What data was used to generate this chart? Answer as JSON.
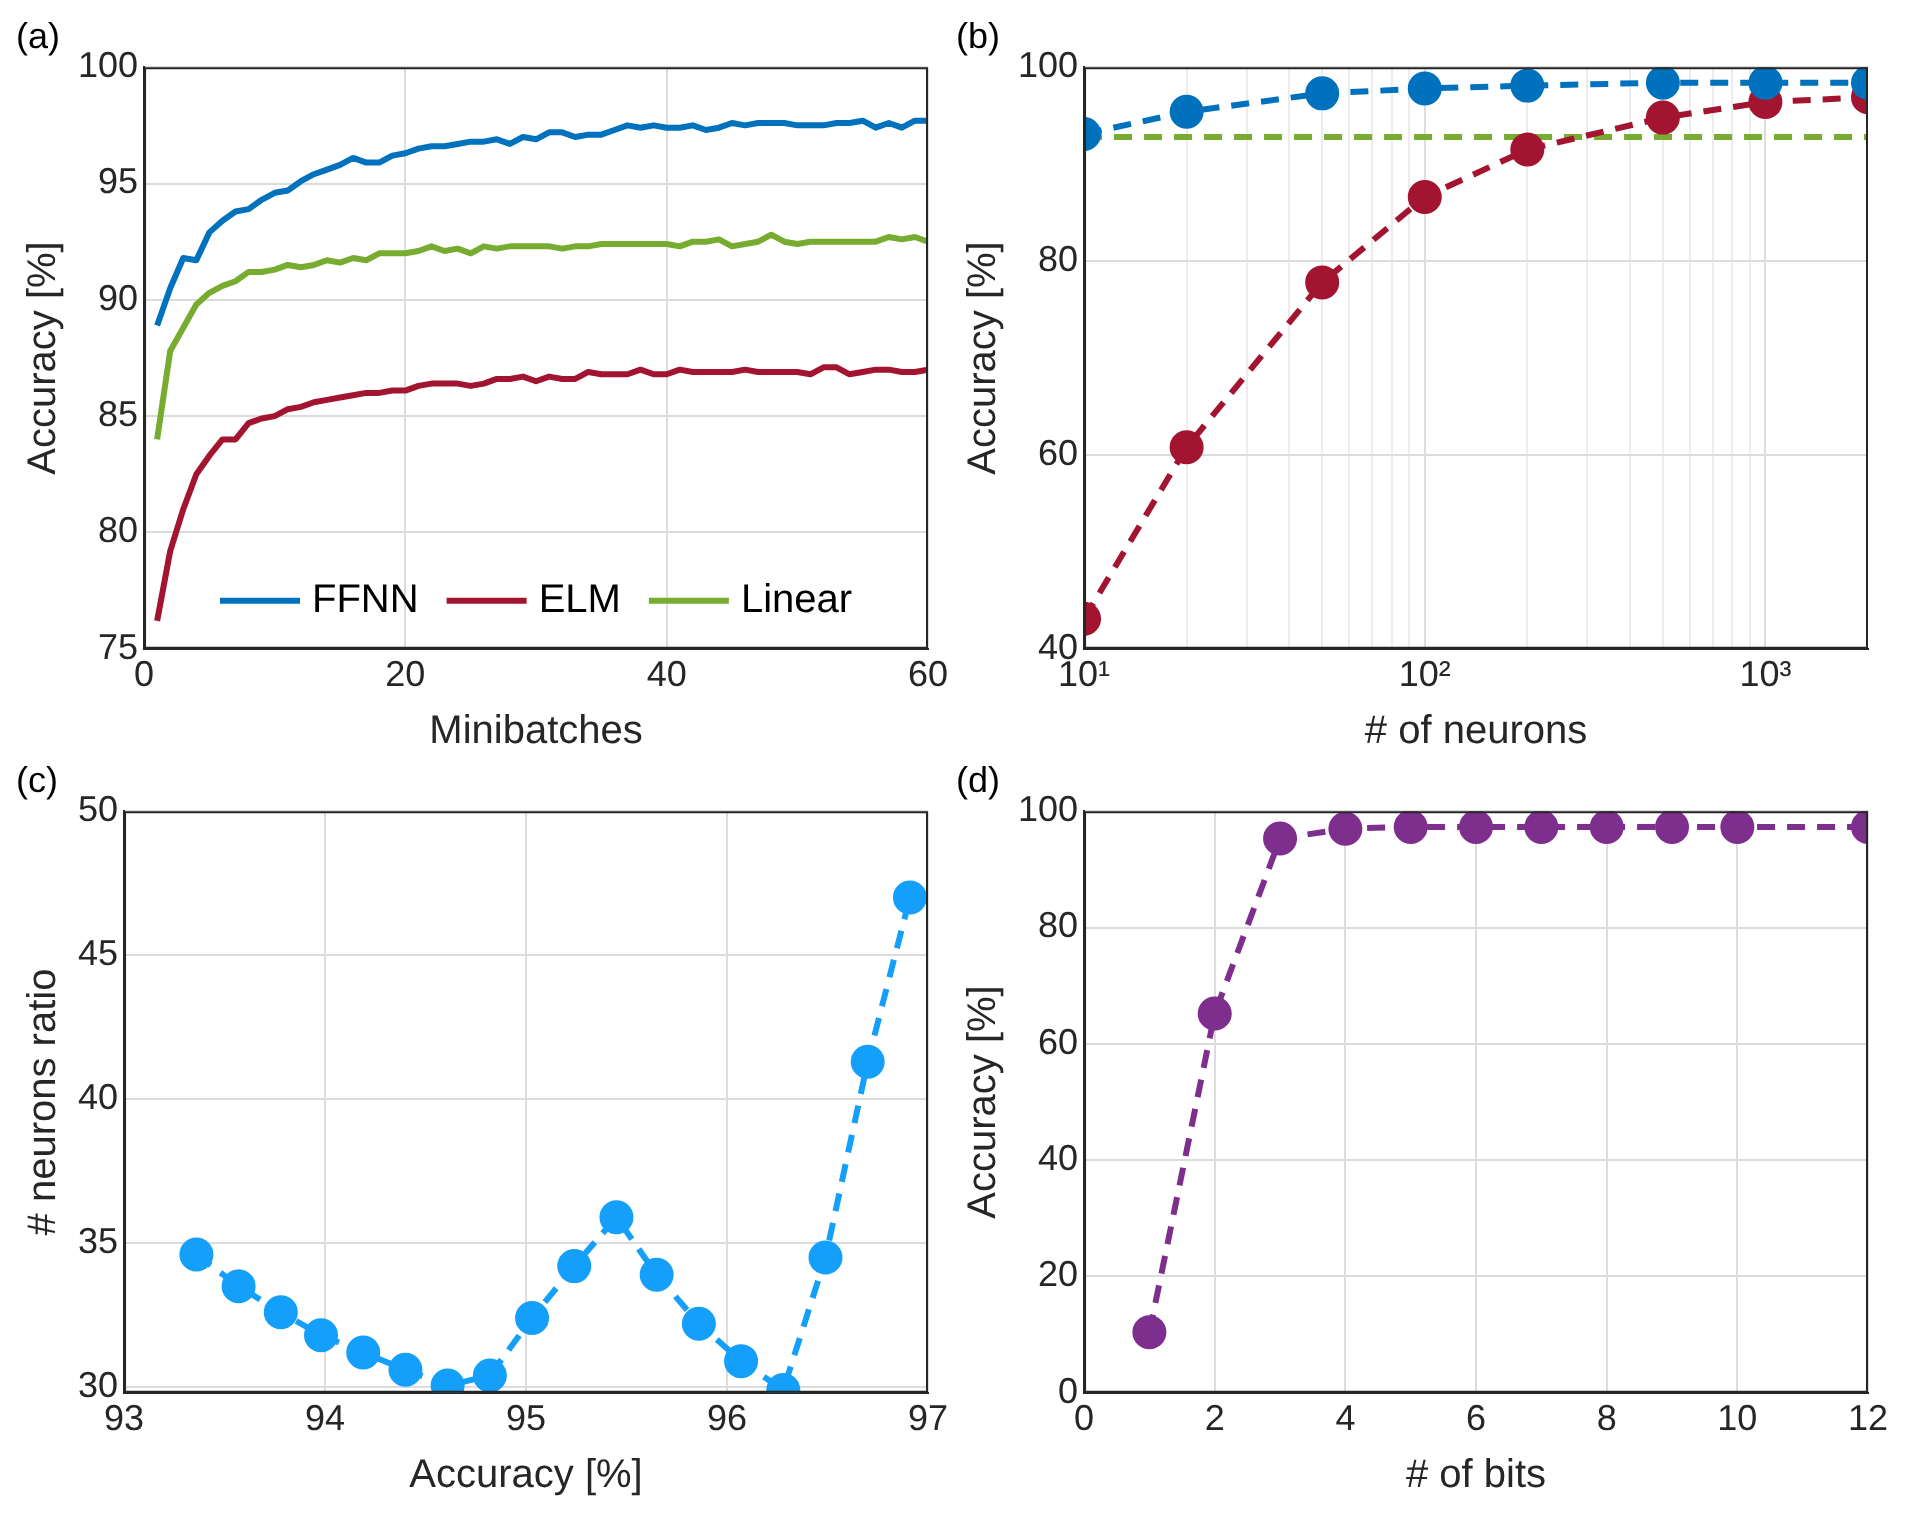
{
  "chart_data": [
    {
      "type": "line",
      "title": "(a)",
      "xlabel": "Minibatches",
      "ylabel": "Accuracy [%]",
      "xlim": [
        0,
        60
      ],
      "xticks": [
        0,
        20,
        40,
        60
      ],
      "ylim": [
        75,
        100
      ],
      "yticks": [
        75,
        80,
        85,
        90,
        95,
        100
      ],
      "grid": true,
      "legend": "bottom",
      "marker": "none",
      "line_style": "solid",
      "x": [
        1,
        2,
        3,
        4,
        5,
        6,
        7,
        8,
        9,
        10,
        11,
        12,
        13,
        14,
        15,
        16,
        17,
        18,
        19,
        20,
        21,
        22,
        23,
        24,
        25,
        26,
        27,
        28,
        29,
        30,
        31,
        32,
        33,
        34,
        35,
        36,
        37,
        38,
        39,
        40,
        41,
        42,
        43,
        44,
        45,
        46,
        47,
        48,
        49,
        50,
        51,
        52,
        53,
        54,
        55,
        56,
        57,
        58,
        59,
        60
      ],
      "series": [
        {
          "name": "FFNN",
          "color": "#0072bd",
          "values": [
            88.9,
            90.5,
            91.8,
            91.7,
            92.9,
            93.4,
            93.8,
            93.9,
            94.3,
            94.6,
            94.7,
            95.1,
            95.4,
            95.6,
            95.8,
            96.1,
            95.9,
            95.9,
            96.2,
            96.3,
            96.5,
            96.6,
            96.6,
            96.7,
            96.8,
            96.8,
            96.9,
            96.7,
            97.0,
            96.9,
            97.2,
            97.2,
            97.0,
            97.1,
            97.1,
            97.3,
            97.5,
            97.4,
            97.5,
            97.4,
            97.4,
            97.5,
            97.3,
            97.4,
            97.6,
            97.5,
            97.6,
            97.6,
            97.6,
            97.5,
            97.5,
            97.5,
            97.6,
            97.6,
            97.7,
            97.4,
            97.6,
            97.4,
            97.7,
            97.7
          ]
        },
        {
          "name": "ELM",
          "color": "#a2142f",
          "values": [
            76.2,
            79.2,
            81.0,
            82.5,
            83.3,
            84.0,
            84.0,
            84.7,
            84.9,
            85.0,
            85.3,
            85.4,
            85.6,
            85.7,
            85.8,
            85.9,
            86.0,
            86.0,
            86.1,
            86.1,
            86.3,
            86.4,
            86.4,
            86.4,
            86.3,
            86.4,
            86.6,
            86.6,
            86.7,
            86.5,
            86.7,
            86.6,
            86.6,
            86.9,
            86.8,
            86.8,
            86.8,
            87.0,
            86.8,
            86.8,
            87.0,
            86.9,
            86.9,
            86.9,
            86.9,
            87.0,
            86.9,
            86.9,
            86.9,
            86.9,
            86.8,
            87.1,
            87.1,
            86.8,
            86.9,
            87.0,
            87.0,
            86.9,
            86.9,
            87.0
          ]
        },
        {
          "name": "Linear",
          "color": "#77ac30",
          "values": [
            84.0,
            87.8,
            88.8,
            89.8,
            90.3,
            90.6,
            90.8,
            91.2,
            91.2,
            91.3,
            91.5,
            91.4,
            91.5,
            91.7,
            91.6,
            91.8,
            91.7,
            92.0,
            92.0,
            92.0,
            92.1,
            92.3,
            92.1,
            92.2,
            92.0,
            92.3,
            92.2,
            92.3,
            92.3,
            92.3,
            92.3,
            92.2,
            92.3,
            92.3,
            92.4,
            92.4,
            92.4,
            92.4,
            92.4,
            92.4,
            92.3,
            92.5,
            92.5,
            92.6,
            92.3,
            92.4,
            92.5,
            92.8,
            92.5,
            92.4,
            92.5,
            92.5,
            92.5,
            92.5,
            92.5,
            92.5,
            92.7,
            92.6,
            92.7,
            92.5
          ]
        }
      ]
    },
    {
      "type": "line",
      "title": "(b)",
      "xlabel": "# of neurons",
      "ylabel": "Accuracy [%]",
      "log": "x",
      "xlim": [
        10,
        2000
      ],
      "xticks": [
        {
          "value": 10,
          "label": "10¹"
        },
        {
          "value": 20,
          "label": null
        },
        {
          "value": 30,
          "label": null
        },
        {
          "value": 40,
          "label": null
        },
        {
          "value": 50,
          "label": null
        },
        {
          "value": 60,
          "label": null
        },
        {
          "value": 70,
          "label": null
        },
        {
          "value": 80,
          "label": null
        },
        {
          "value": 90,
          "label": null
        },
        {
          "value": 100,
          "label": "10²"
        },
        {
          "value": 200,
          "label": null
        },
        {
          "value": 300,
          "label": null
        },
        {
          "value": 400,
          "label": null
        },
        {
          "value": 500,
          "label": null
        },
        {
          "value": 600,
          "label": null
        },
        {
          "value": 700,
          "label": null
        },
        {
          "value": 800,
          "label": null
        },
        {
          "value": 900,
          "label": null
        },
        {
          "value": 1000,
          "label": "10³"
        }
      ],
      "ylim": [
        40,
        100
      ],
      "yticks": [
        40,
        60,
        80,
        100
      ],
      "grid": true,
      "marker": "circle",
      "line_style": "dashed",
      "x": [
        10,
        20,
        50,
        100,
        200,
        500,
        1000,
        2000
      ],
      "series": [
        {
          "color": "#0072bd",
          "values": [
            93.1,
            95.4,
            97.3,
            97.8,
            98.1,
            98.4,
            98.4,
            98.4
          ]
        },
        {
          "color": "#a2142f",
          "values": [
            43.1,
            60.8,
            77.8,
            86.6,
            91.5,
            94.8,
            96.4,
            96.9
          ]
        },
        {
          "color": "#77ac30",
          "x": [
            10,
            2000
          ],
          "values": [
            92.8,
            92.8
          ],
          "marker": "none"
        }
      ]
    },
    {
      "type": "line",
      "title": "(c)",
      "xlabel": "Accuracy [%]",
      "ylabel": "# neurons ratio",
      "xlim": [
        93,
        97
      ],
      "xticks": [
        93,
        94,
        95,
        96,
        97
      ],
      "ylim": [
        29.8,
        50
      ],
      "yticks": [
        30,
        35,
        40,
        45,
        50
      ],
      "grid": true,
      "marker": "circle",
      "line_style": "dashed",
      "x": [
        93.36,
        93.57,
        93.78,
        93.98,
        94.19,
        94.4,
        94.61,
        94.82,
        95.03,
        95.24,
        95.45,
        95.65,
        95.86,
        96.07,
        96.28,
        96.49,
        96.7,
        96.91
      ],
      "series": [
        {
          "color": "#149ffb",
          "values": [
            34.6,
            33.5,
            32.6,
            31.8,
            31.2,
            30.6,
            30.05,
            30.4,
            32.4,
            34.2,
            35.9,
            33.9,
            32.2,
            30.9,
            29.9,
            34.5,
            41.3,
            47.0
          ]
        }
      ]
    },
    {
      "type": "line",
      "title": "(d)",
      "xlabel": "# of bits",
      "ylabel": "Accuracy [%]",
      "xlim": [
        0,
        12
      ],
      "xticks": [
        0,
        2,
        4,
        6,
        8,
        10,
        12
      ],
      "ylim": [
        0,
        100
      ],
      "yticks": [
        0,
        20,
        40,
        60,
        80,
        100
      ],
      "grid": true,
      "marker": "circle",
      "line_style": "dashed",
      "x": [
        1,
        2,
        3,
        4,
        5,
        6,
        7,
        8,
        9,
        10,
        12
      ],
      "series": [
        {
          "color": "#7e2f8e",
          "values": [
            10.4,
            65.2,
            95.3,
            97.0,
            97.3,
            97.3,
            97.3,
            97.3,
            97.3,
            97.3,
            97.3
          ]
        }
      ]
    }
  ]
}
